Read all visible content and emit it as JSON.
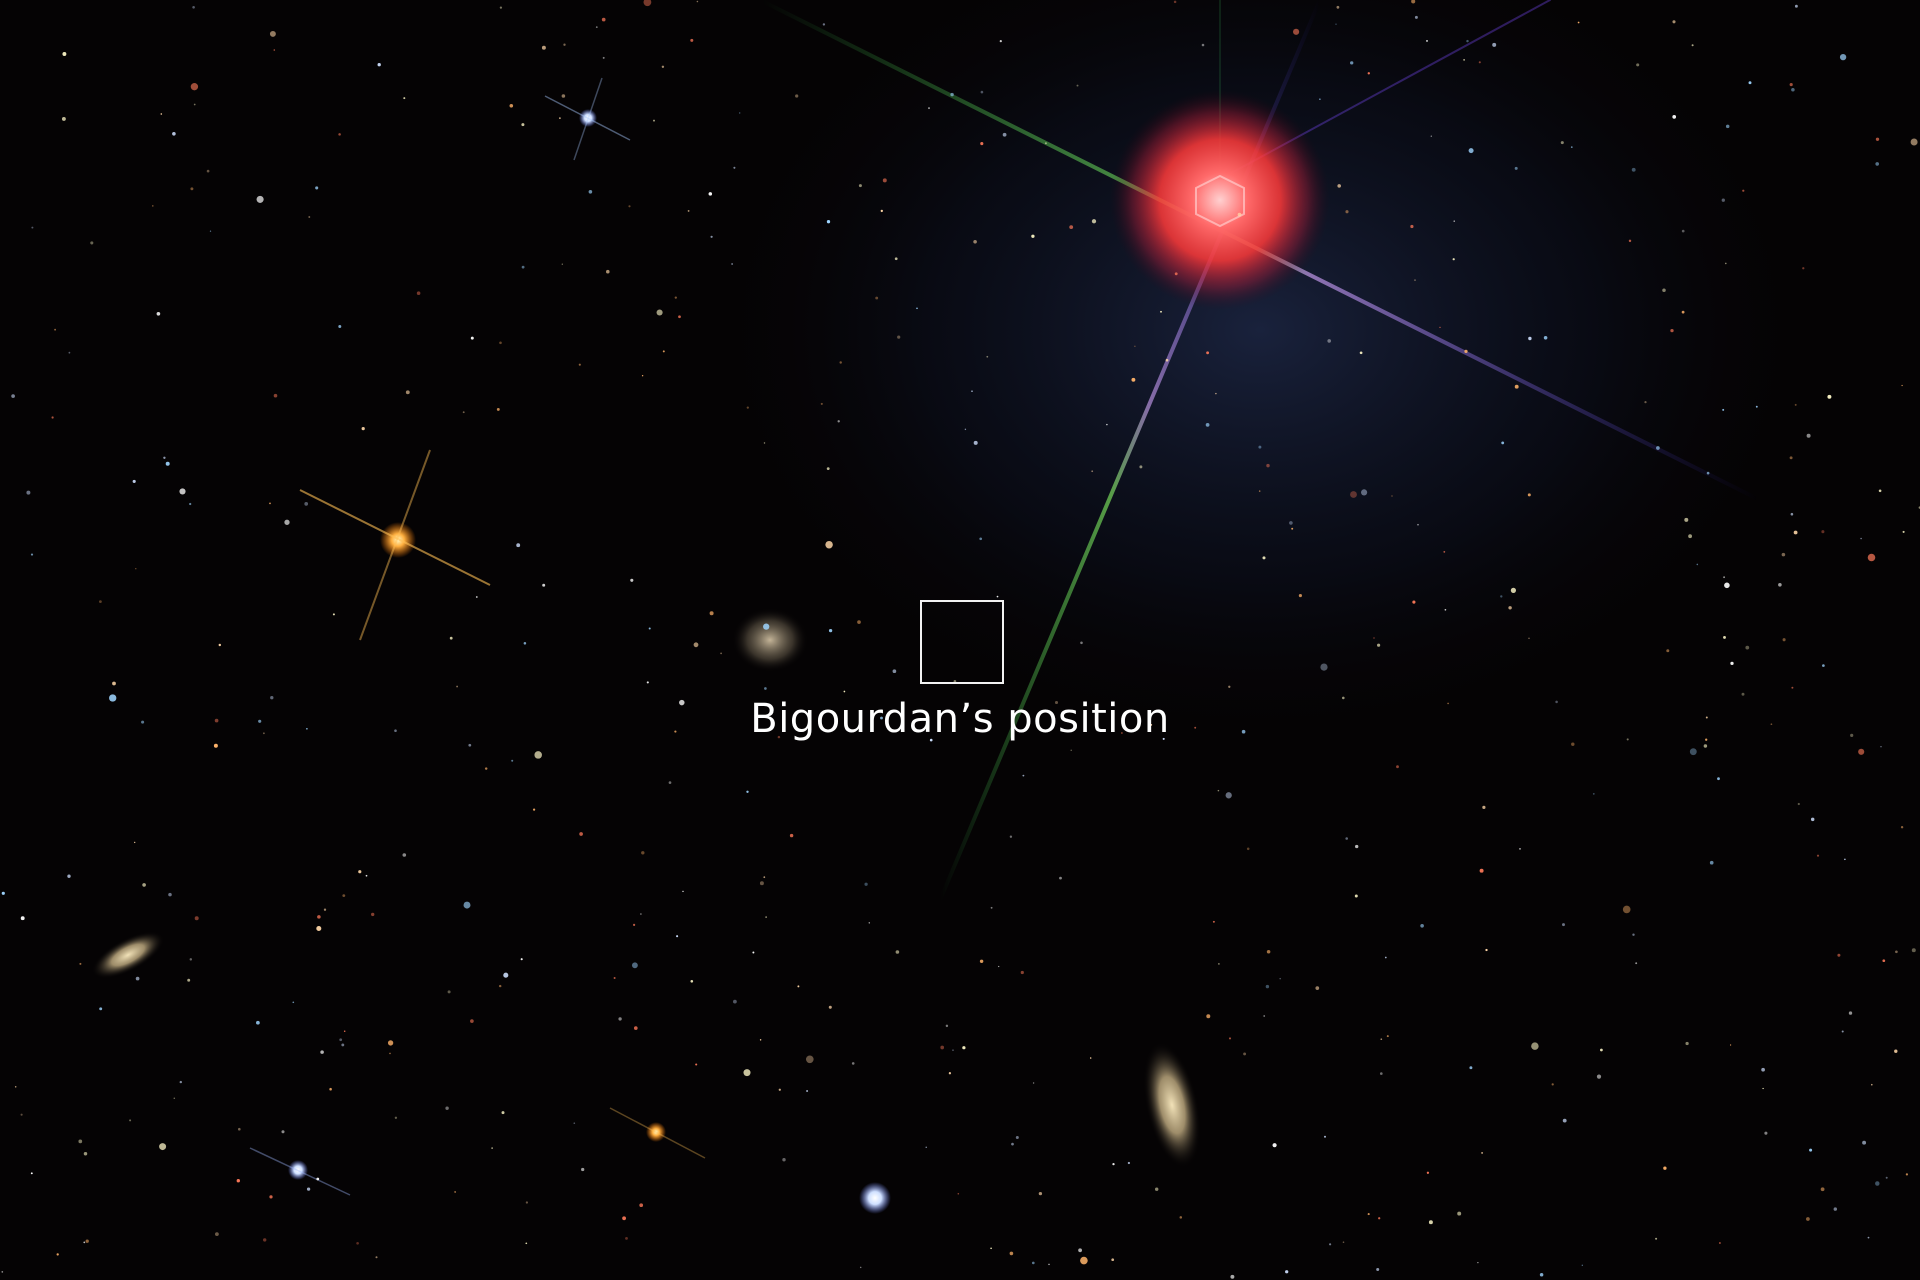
{
  "annotation": {
    "label": "Bigourdan’s position"
  },
  "colors": {
    "background": "#050304",
    "marker": "#f2f2f2",
    "bright_star_glow": "#ff4a4a",
    "label_text": "#ffffff"
  },
  "objects": [
    "bright red saturated star with diffraction spikes",
    "orange star with diffraction spikes",
    "faint spiral galaxy",
    "edge-on spiral galaxy",
    "elliptical galaxy",
    "field stars"
  ]
}
